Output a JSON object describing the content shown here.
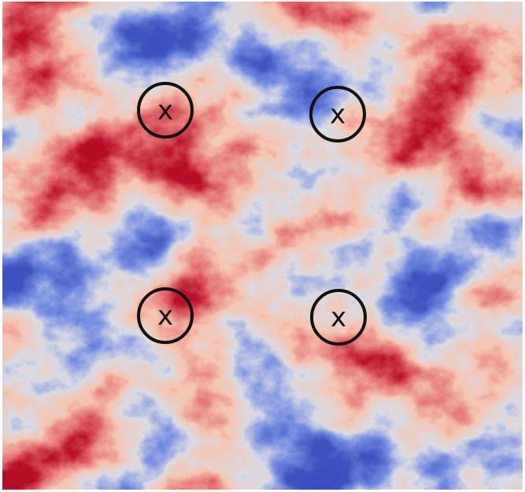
{
  "markers": [
    {
      "label": "x"
    },
    {
      "label": "x"
    },
    {
      "label": "x"
    },
    {
      "label": "x"
    }
  ]
}
